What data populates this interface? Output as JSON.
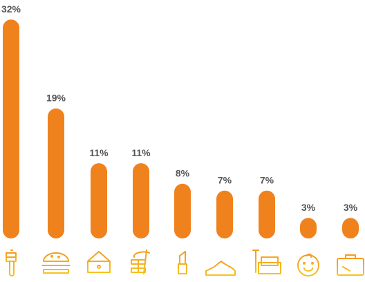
{
  "chart_data": {
    "type": "bar",
    "categories": [
      null,
      null,
      null,
      null,
      null,
      null,
      null,
      null,
      null
    ],
    "values": [
      32,
      19,
      11,
      11,
      8,
      7,
      7,
      3,
      3
    ],
    "value_labels": [
      "32%",
      "19%",
      "11%",
      "11%",
      "8%",
      "7%",
      "7%",
      "3%",
      "3%"
    ],
    "color": "#f0821e"
  }
}
